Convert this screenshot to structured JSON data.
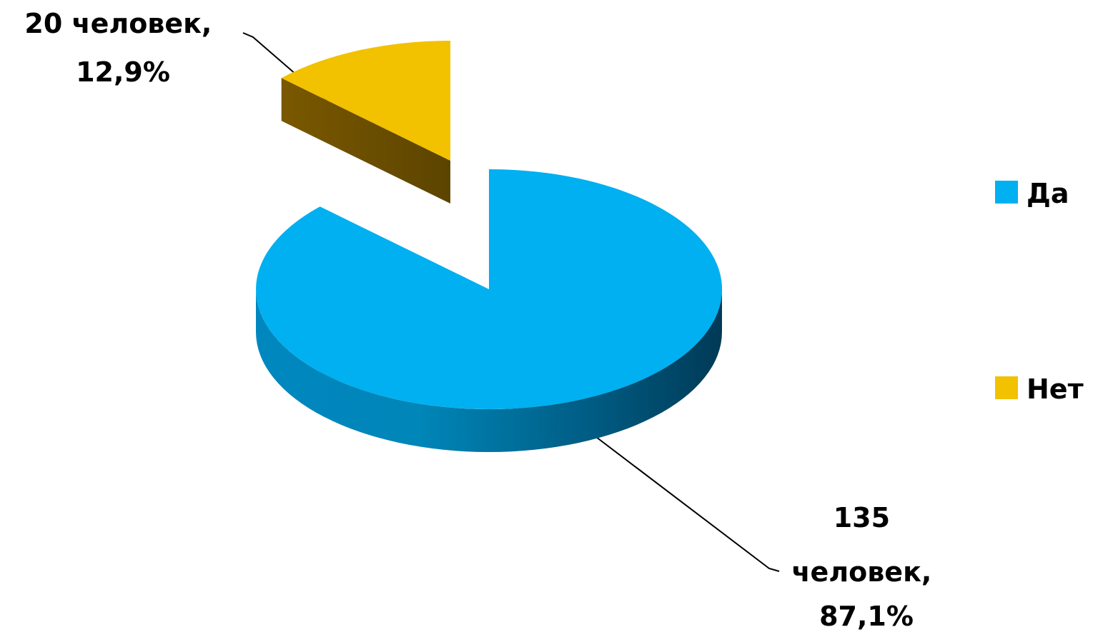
{
  "chart_data": {
    "type": "pie",
    "style": "3d-exploded",
    "categories": [
      "Да",
      "Нет"
    ],
    "values": [
      135,
      20
    ],
    "percentages": [
      87.1,
      12.9
    ],
    "colors": [
      "#00b0f0",
      "#f2c100"
    ],
    "data_labels": [
      {
        "lines": [
          "135",
          "человек,",
          "87,1%"
        ]
      },
      {
        "lines": [
          "20 человек,",
          "12,9%"
        ]
      }
    ],
    "legend": {
      "position": "right",
      "entries": [
        "Да",
        "Нет"
      ]
    }
  }
}
